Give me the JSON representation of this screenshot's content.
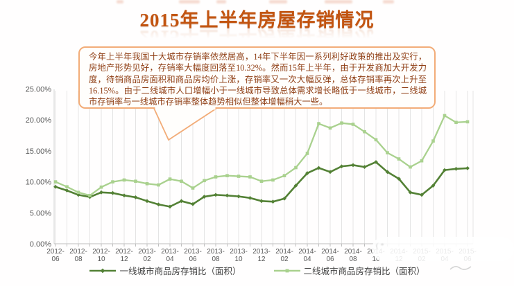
{
  "title": "2015年上半年房屋存销情况",
  "callout": {
    "text": "今年上半年我国十大城市存销率依然居高，14年下半年因一系列利好政策的推出及实行，房地产形势见好，存销率大幅度回落至10.32%。然而15年上半年，由于开发商加大开发力度，待销商品房面积和商品房均价上涨，存销率又一次大幅反弹，总体存销率再次上升至16.15%。由于二线城市人口增幅小于一线城市导致总体需求增长略低于一线城市，二线城市存销率与一线城市存销率整体趋势相似但整体增幅稍大一些。"
  },
  "chart_data": {
    "type": "line",
    "x": [
      "2012-06",
      "2012-07",
      "2012-08",
      "2012-09",
      "2012-10",
      "2012-11",
      "2012-12",
      "2013-01",
      "2013-02",
      "2013-03",
      "2013-04",
      "2013-05",
      "2013-06",
      "2013-07",
      "2013-08",
      "2013-09",
      "2013-10",
      "2013-11",
      "2013-12",
      "2014-01",
      "2014-02",
      "2014-03",
      "2014-04",
      "2014-05",
      "2014-06",
      "2014-07",
      "2014-08",
      "2014-09",
      "2014-10",
      "2014-11",
      "2014-12",
      "2015-01",
      "2015-02",
      "2015-03",
      "2015-04",
      "2015-05",
      "2015-06"
    ],
    "x_tick_labels": [
      "2012-06",
      "2012-08",
      "2012-10",
      "2012-12",
      "2013-02",
      "2013-04",
      "2013-06",
      "2013-08",
      "2013-10",
      "2013-12",
      "2014-02",
      "2014-04",
      "2014-06",
      "2014-08",
      "2014-10",
      "2014-12",
      "2015-02",
      "2015-04",
      "2015-06"
    ],
    "series": [
      {
        "name": "一线城市商品房存销比（面积）",
        "color": "#538135",
        "values": [
          9.2,
          8.6,
          7.9,
          7.55,
          8.3,
          8.2,
          7.8,
          7.5,
          6.9,
          6.35,
          6.0,
          6.9,
          6.4,
          7.6,
          7.9,
          7.8,
          7.65,
          7.4,
          6.9,
          6.8,
          7.3,
          9.4,
          11.4,
          12.25,
          11.6,
          12.5,
          12.7,
          12.4,
          13.2,
          11.6,
          10.5,
          8.3,
          7.9,
          9.4,
          11.9,
          12.1,
          12.2
        ]
      },
      {
        "name": "二线城市商品房存销比（面积）",
        "color": "#A9D18E",
        "values": [
          10.0,
          9.2,
          8.3,
          7.8,
          9.15,
          10.0,
          10.3,
          10.1,
          9.7,
          9.5,
          10.45,
          10.1,
          9.0,
          10.2,
          10.8,
          11.0,
          10.9,
          10.8,
          10.1,
          10.3,
          11.0,
          12.3,
          14.6,
          19.4,
          18.7,
          19.5,
          19.3,
          18.1,
          16.8,
          14.7,
          13.7,
          12.4,
          13.4,
          16.6,
          20.7,
          19.6,
          19.7
        ]
      }
    ],
    "title": "2015年上半年房屋存销情况",
    "xlabel": "",
    "ylabel": "",
    "ylim": [
      0,
      25
    ],
    "y_ticks": [
      "0.00%",
      "5.00%",
      "10.00%",
      "15.00%",
      "20.00%",
      "25.00%"
    ],
    "grid": "vertical-monthly",
    "legend_position": "bottom"
  },
  "watermark": {
    "ghost_marks": "( *"
  },
  "colors": {
    "title_orange": "#C25410",
    "callout_border": "#F2AC78",
    "callout_text": "#8F3E14",
    "tier1_green": "#538135",
    "tier2_green": "#A9D18E",
    "axis_text": "#595959",
    "gridline": "#E4E4E4",
    "axis_line": "#BFBFBF"
  }
}
